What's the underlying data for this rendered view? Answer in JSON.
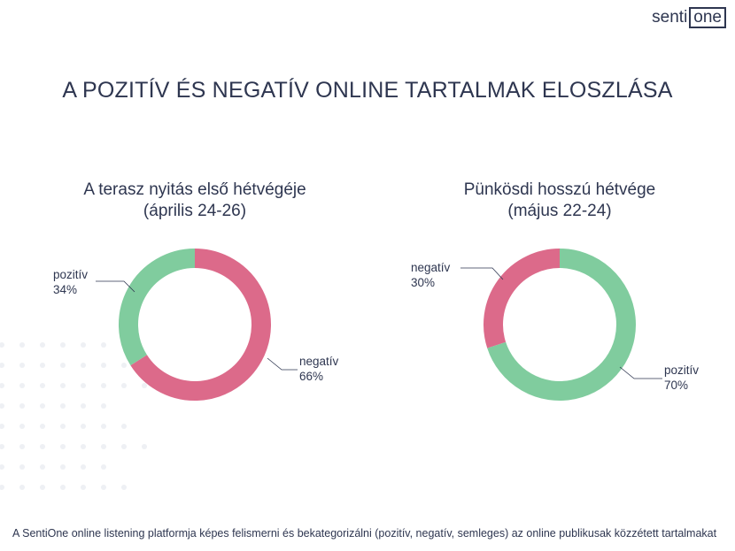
{
  "logo": {
    "left": "senti",
    "right": "one"
  },
  "title": "A POZITÍV ÉS NEGATÍV ONLINE TARTALMAK ELOSZLÁSA",
  "footer": "A SentiOne online listening platformja képes felismerni és bekategorizálni (pozitív, negatív, semleges) az online publikusak közzétett tartalmakat",
  "colors": {
    "negativ": "#dc6a8a",
    "pozitiv": "#80cc9e",
    "text": "#2e3650"
  },
  "chart_data": [
    {
      "type": "pie",
      "donut": true,
      "title": "A terasz nyitás első hétvégéje",
      "subtitle": "(április 24-26)",
      "slices": [
        {
          "label": "negatív",
          "value": 66,
          "display": "66%"
        },
        {
          "label": "pozitív",
          "value": 34,
          "display": "34%"
        }
      ]
    },
    {
      "type": "pie",
      "donut": true,
      "title": "Pünkösdi hosszú hétvége",
      "subtitle": "(május 22-24)",
      "slices": [
        {
          "label": "pozitív",
          "value": 70,
          "display": "70%"
        },
        {
          "label": "negatív",
          "value": 30,
          "display": "30%"
        }
      ]
    }
  ]
}
